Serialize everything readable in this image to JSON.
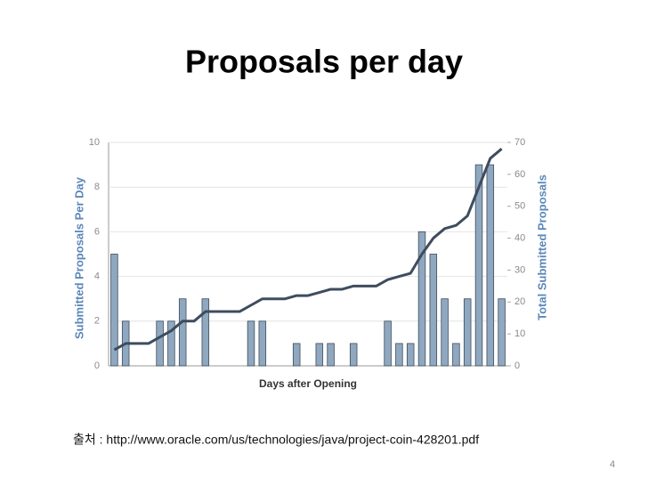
{
  "title": "Proposals per day",
  "chart_data": {
    "type": "bar-line",
    "x_label": "Days after Opening",
    "y_label": "Submitted Proposals Per Day",
    "y2_label": "Total Submitted Proposals",
    "ylim": [
      0,
      10
    ],
    "yticks": [
      0,
      2,
      4,
      6,
      8,
      10
    ],
    "y2lim": [
      0,
      70
    ],
    "y2ticks": [
      0,
      10,
      20,
      30,
      40,
      50,
      60,
      70
    ],
    "grid": true,
    "series": [
      {
        "type": "bar",
        "color": "#8fa8bf",
        "values": [
          5,
          2,
          0,
          0,
          2,
          2,
          3,
          0,
          3,
          0,
          0,
          0,
          2,
          2,
          0,
          0,
          1,
          0,
          1,
          1,
          0,
          1,
          0,
          0,
          2,
          1,
          1,
          6,
          5,
          3,
          1,
          3,
          9,
          9,
          3
        ]
      },
      {
        "type": "line",
        "axis": "y2",
        "color": "#3e4c5e",
        "values": [
          5,
          7,
          7,
          7,
          9,
          11,
          14,
          14,
          17,
          17,
          17,
          17,
          19,
          21,
          21,
          21,
          22,
          22,
          23,
          24,
          24,
          25,
          25,
          25,
          27,
          28,
          29,
          35,
          40,
          43,
          44,
          47,
          56,
          65,
          68
        ]
      }
    ]
  },
  "source": "출처 : http://www.oracle.com/us/technologies/java/project-coin-428201.pdf",
  "page_number": "4"
}
